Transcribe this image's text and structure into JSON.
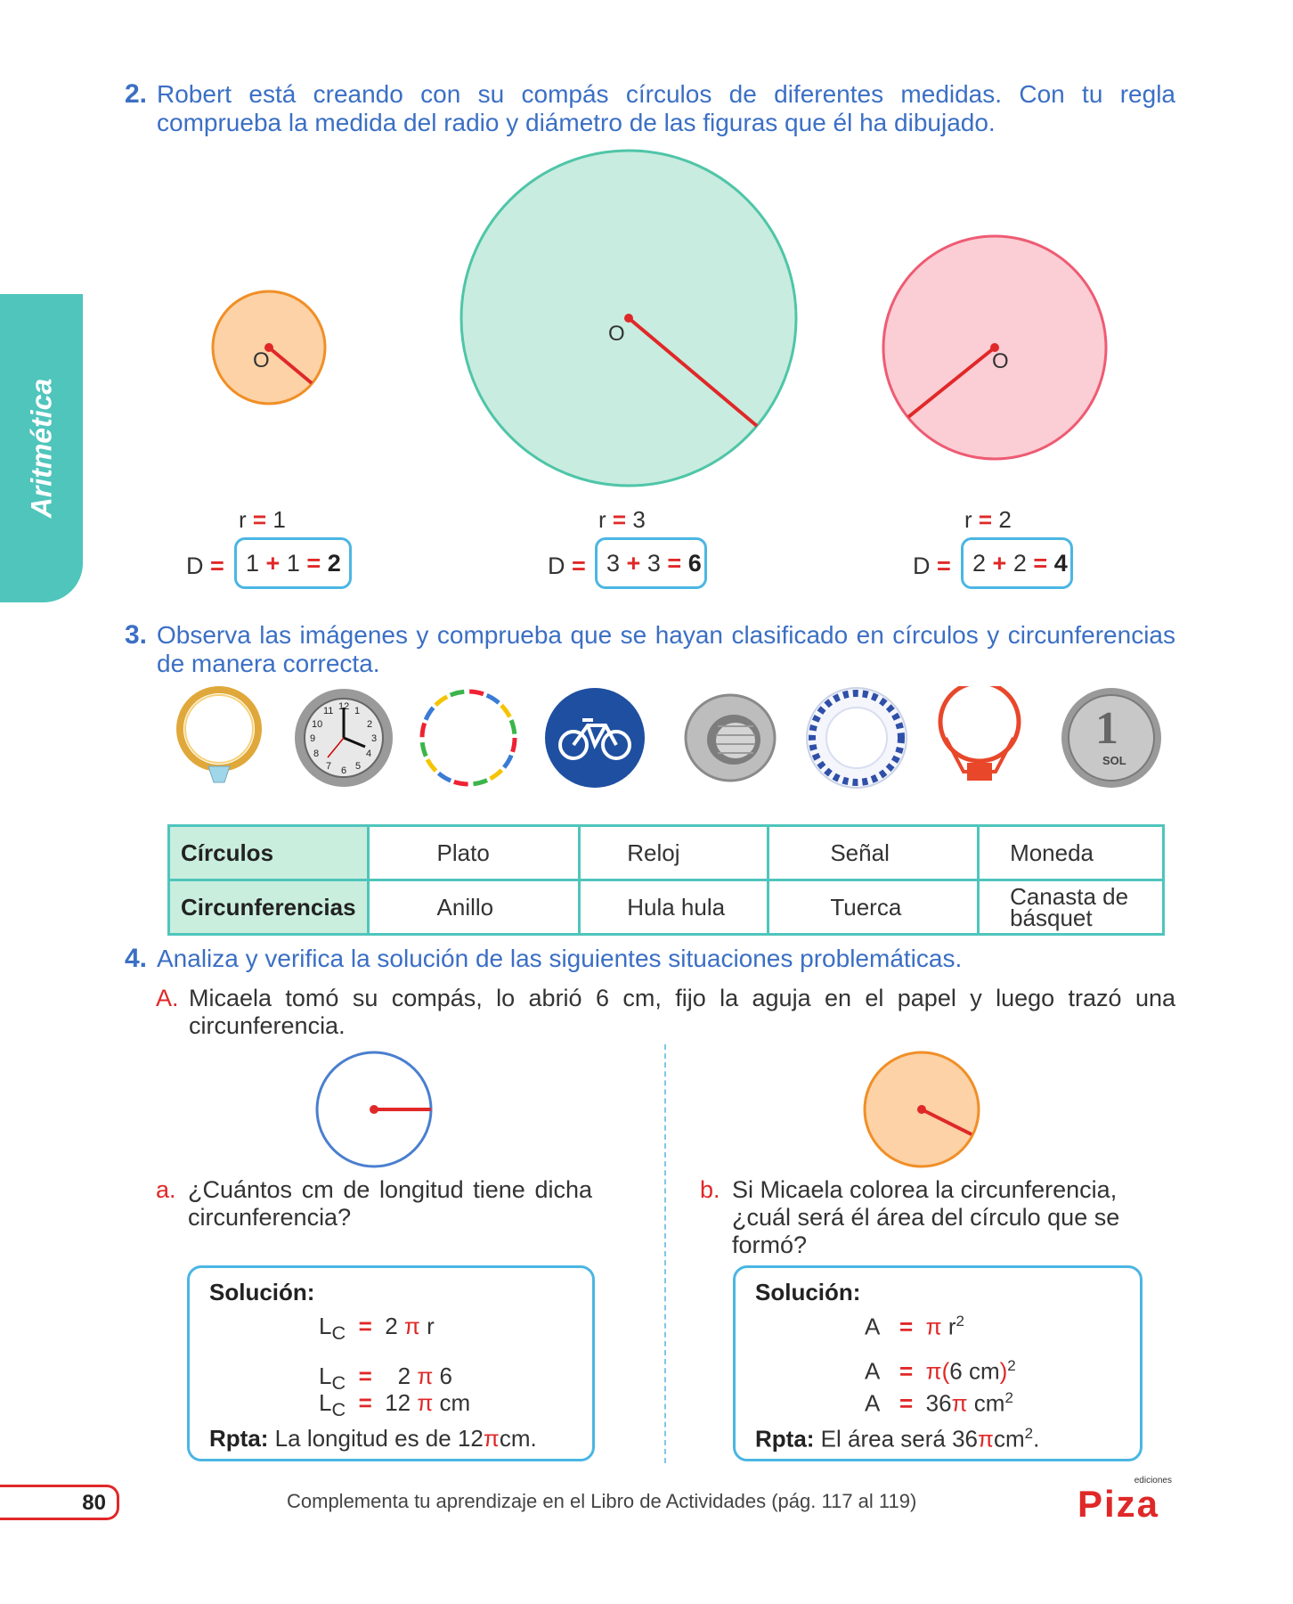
{
  "side_tab": "Aritmética",
  "q2": {
    "num": "2.",
    "text": "Robert está creando con su compás círculos de diferentes medidas. Con tu regla comprueba la medida del radio y diámetro de las figuras que él ha dibujado.",
    "center_label": "O",
    "circles": [
      {
        "r_label": "r",
        "r_eq": "=",
        "r_value": "1",
        "d_label": "D",
        "d_eq": "=",
        "a": "1",
        "plus": "+",
        "b": "1",
        "eq2": "=",
        "result": "2",
        "fill": "#fcd2a6",
        "stroke": "#f08f27"
      },
      {
        "r_label": "r",
        "r_eq": "=",
        "r_value": "3",
        "d_label": "D",
        "d_eq": "=",
        "a": "3",
        "plus": "+",
        "b": "3",
        "eq2": "=",
        "result": "6",
        "fill": "#c8ecdf",
        "stroke": "#4fc5a8"
      },
      {
        "r_label": "r",
        "r_eq": "=",
        "r_value": "2",
        "d_label": "D",
        "d_eq": "=",
        "a": "2",
        "plus": "+",
        "b": "2",
        "eq2": "=",
        "result": "4",
        "fill": "#fbcdd4",
        "stroke": "#ee5b73"
      }
    ]
  },
  "q3": {
    "num": "3.",
    "text": "Observa las imágenes y comprueba que se hayan clasificado en círculos y circunferencias de manera correcta.",
    "icons": [
      "ring-icon",
      "clock-icon",
      "hula-hoop-icon",
      "bicycle-sign-icon",
      "nut-icon",
      "plate-icon",
      "basket-hoop-icon",
      "coin-icon"
    ],
    "clock_numbers": [
      "12",
      "1",
      "2",
      "3",
      "4",
      "5",
      "6",
      "7",
      "8",
      "9",
      "10",
      "11"
    ],
    "coin_digit": "1",
    "coin_text": "SOL",
    "table": {
      "row1_header": "Círculos",
      "row1": [
        "Plato",
        "Reloj",
        "Señal",
        "Moneda"
      ],
      "row2_header": "Circunferencias",
      "row2": [
        "Anillo",
        "Hula hula",
        "Tuerca",
        "Canasta de básquet"
      ]
    }
  },
  "q4": {
    "num": "4.",
    "text": "Analiza y verifica la solución de las siguientes situaciones problemáticas.",
    "a_letter": "A.",
    "a_text": "Micaela tomó su compás, lo abrió 6 cm, fijo la aguja en el papel y luego trazó una circunferencia.",
    "part_a": {
      "letter": "a.",
      "question": "¿Cuántos cm de longitud tiene dicha circunferencia?",
      "sol_title": "Solución:",
      "l": "L",
      "sub": "C",
      "eq": "=",
      "line1": "2",
      "pi": "π",
      "line1_r": "r",
      "line2": "2",
      "line2_r": "6",
      "line3": "12",
      "line3_r": "cm",
      "rpta_label": "Rpta:",
      "rpta_text": "La longitud es de 12",
      "rpta_end": "cm."
    },
    "part_b": {
      "letter": "b.",
      "question": "Si Micaela colorea la circunferencia, ¿cuál será él área del círculo que se formó?",
      "sol_title": "Solución:",
      "a": "A",
      "eq": "=",
      "pi": "π",
      "line1_r": "r",
      "sup": "2",
      "line2_open": "(",
      "line2_in": "6 cm",
      "line2_close": ")",
      "line3": "36",
      "line3_r": "cm",
      "rpta_label": "Rpta:",
      "rpta_text": "El área será 36",
      "rpta_end": "cm",
      "rpta_dot": "."
    }
  },
  "footer": {
    "page": "80",
    "text": "Complementa tu aprendizaje en el Libro de Actividades (pág. 117 al 119)",
    "logo": "Piza",
    "logo_small": "ediciones"
  }
}
